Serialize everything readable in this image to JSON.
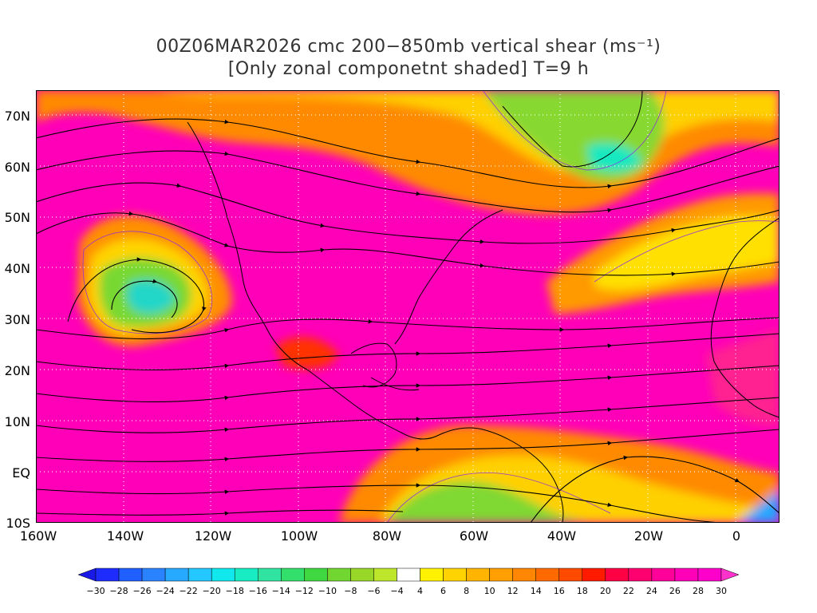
{
  "title": {
    "line1": "00Z06MAR2026 cmc 200−850mb vertical shear (ms⁻¹)",
    "line2": "[Only zonal componetnt shaded] T=9 h"
  },
  "lat_labels": [
    "70N",
    "60N",
    "50N",
    "40N",
    "30N",
    "20N",
    "10N",
    "EQ",
    "10S"
  ],
  "lon_labels": [
    "160W",
    "140W",
    "120W",
    "100W",
    "80W",
    "60W",
    "40W",
    "20W",
    "0"
  ],
  "colorbar": {
    "labels": [
      "-30",
      "-28",
      "-26",
      "-24",
      "-22",
      "-20",
      "-18",
      "-16",
      "-14",
      "-12",
      "-10",
      "-8",
      "-6",
      "-4",
      "4",
      "6",
      "8",
      "10",
      "12",
      "14",
      "16",
      "18",
      "20",
      "22",
      "24",
      "26",
      "28",
      "30"
    ],
    "colors": [
      "#1e2cff",
      "#1f5eff",
      "#2b82ff",
      "#27a9ff",
      "#22c8ff",
      "#10e8ee",
      "#18ecc2",
      "#30e4a0",
      "#32df6a",
      "#40d840",
      "#72d630",
      "#98d628",
      "#bde52a",
      "#ffffff",
      "#fff200",
      "#ffd200",
      "#ffb400",
      "#ff9f00",
      "#ff8600",
      "#ff6a00",
      "#ff4a00",
      "#ff1a00",
      "#ff0045",
      "#ff0070",
      "#ff0099",
      "#ff00b8",
      "#ff00cc"
    ],
    "low_arrow_color": "#1919e6",
    "high_arrow_color": "#ff33cc"
  },
  "map": {
    "extent": {
      "lon_min": -160,
      "lon_max": 10,
      "lat_min": -10,
      "lat_max": 75
    },
    "shading_note": "zonal vertical shear component shaded"
  }
}
